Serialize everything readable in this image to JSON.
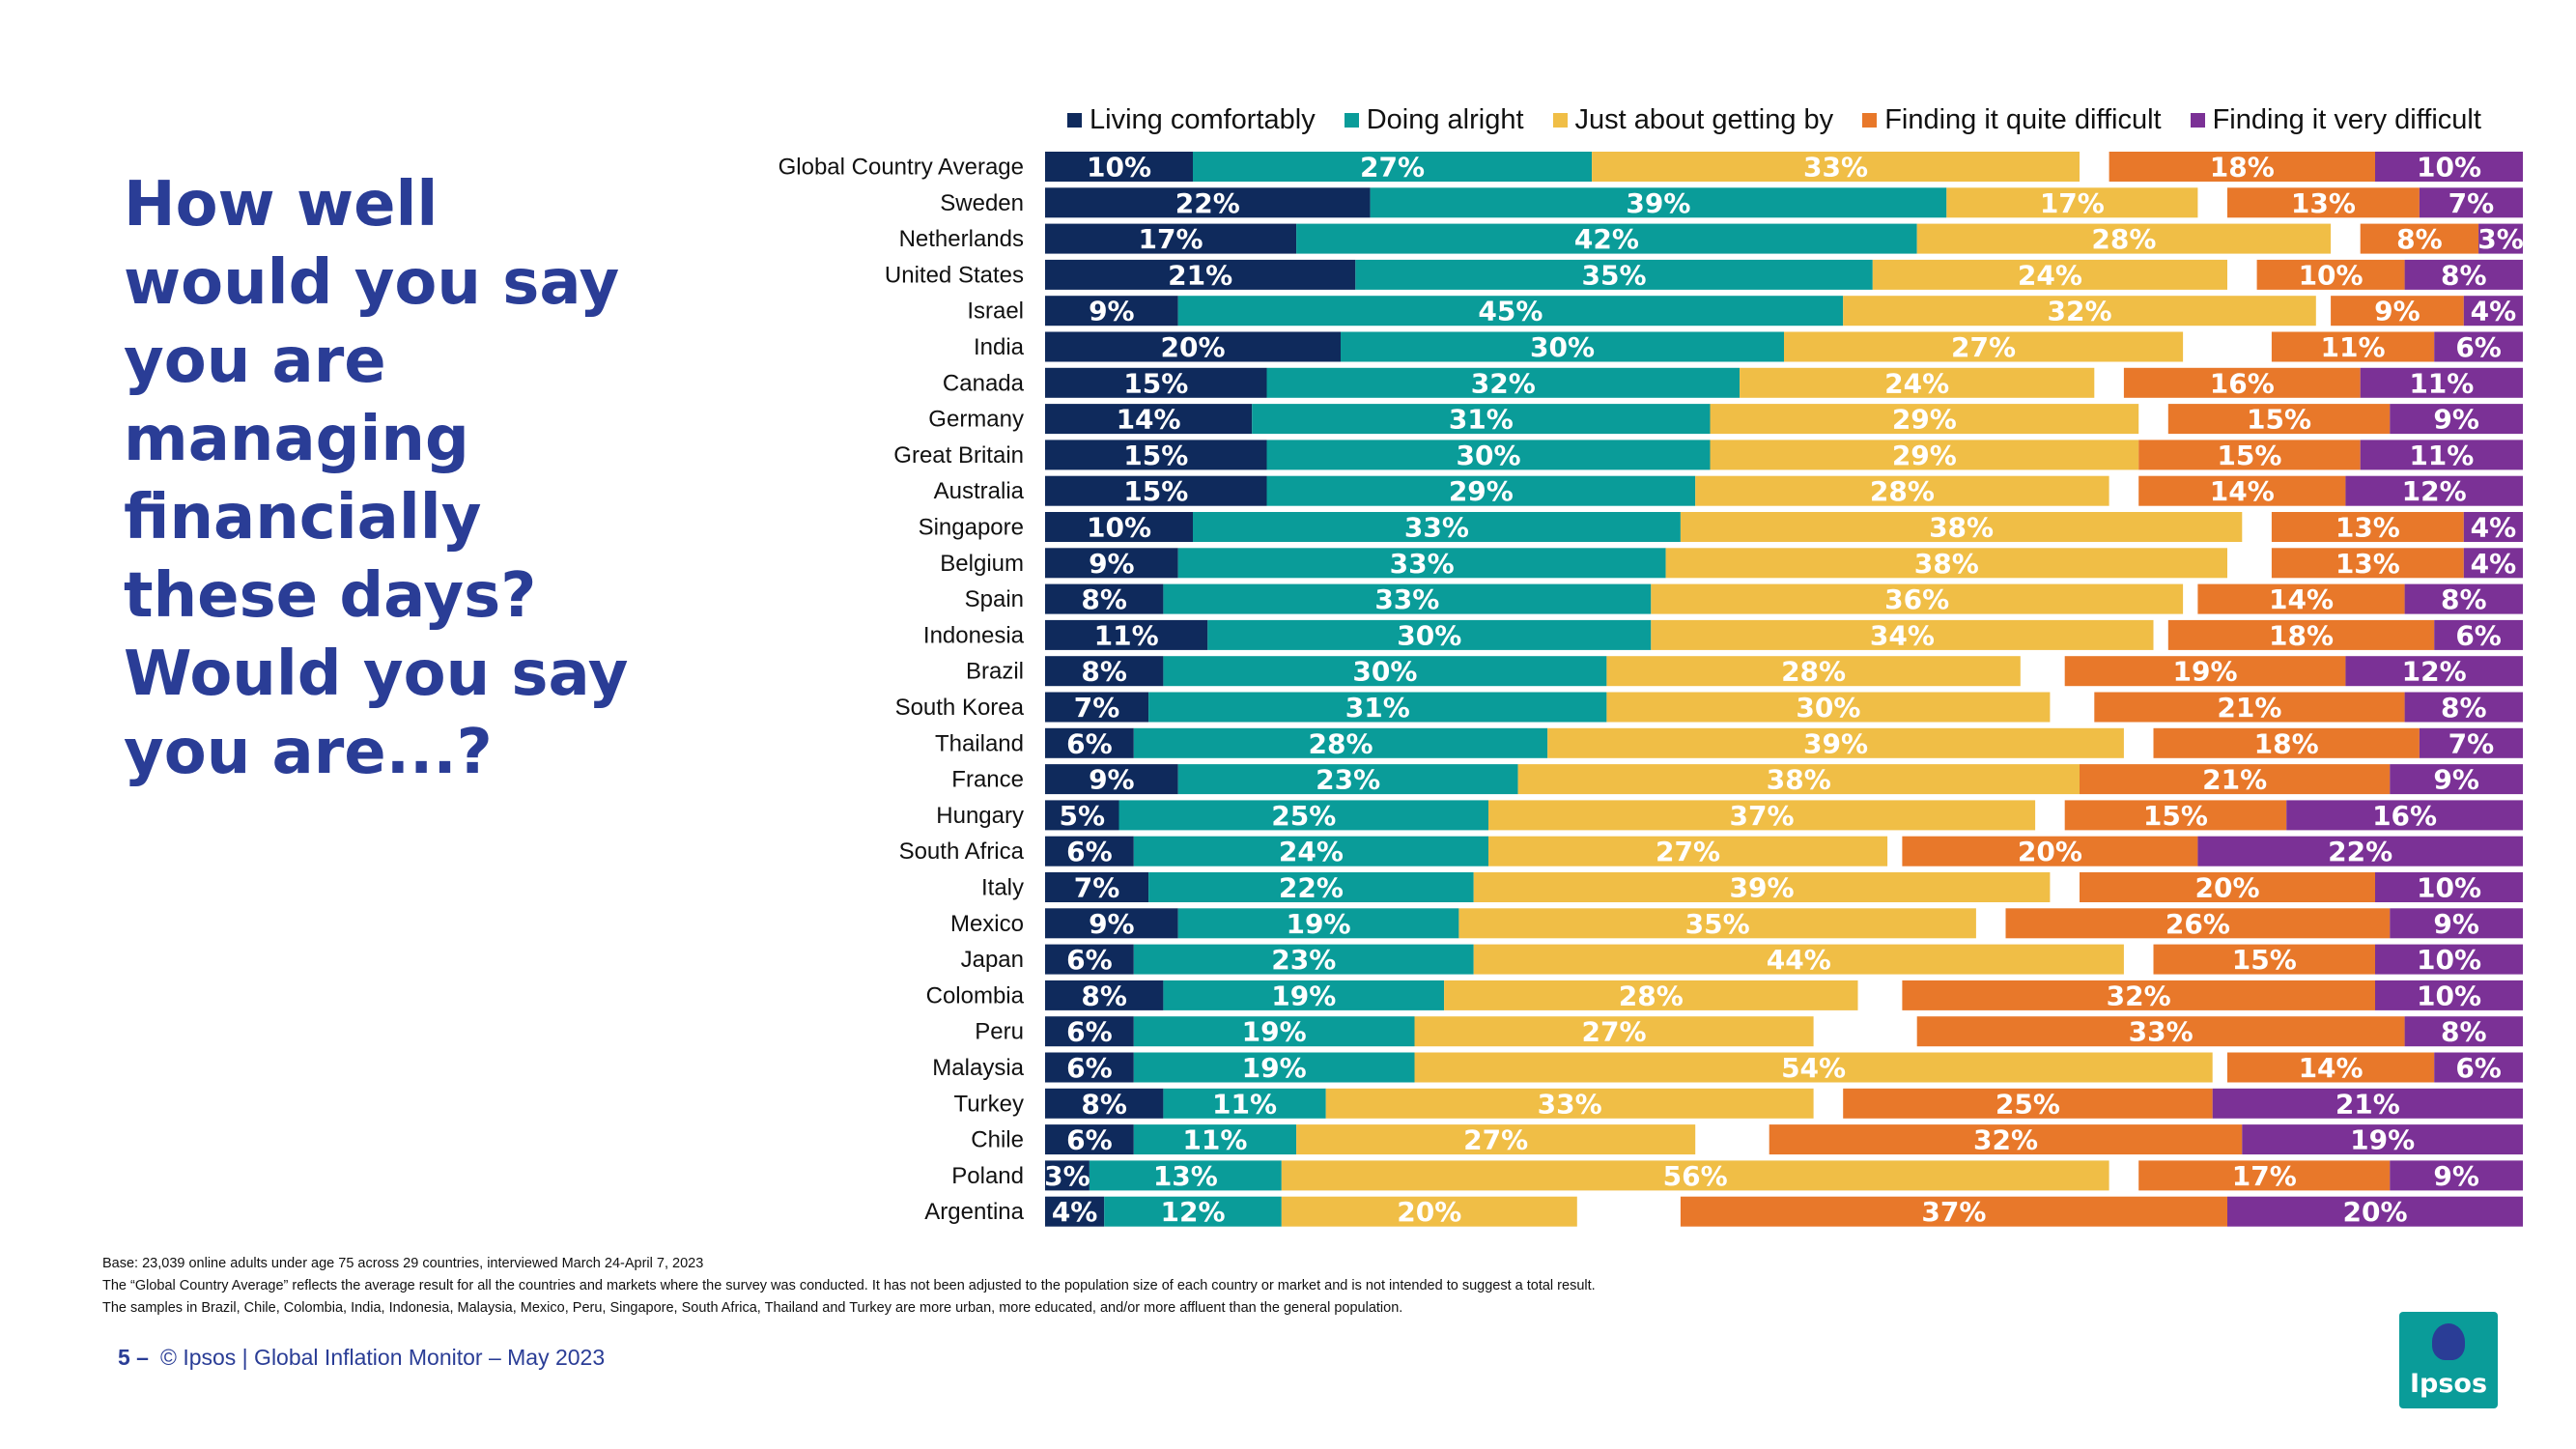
{
  "question": "How well would you say you are managing financially these days? Would you say you are...?",
  "footnotes": [
    "Base: 23,039 online adults under age 75 across 29 countries, interviewed March 24-April 7, 2023",
    "The “Global Country Average” reflects the average result for all the countries and markets where the survey was conducted. It has not been adjusted to the population size of each country or market and is not intended to suggest a total result.",
    "The samples in Brazil, Chile, Colombia, India, Indonesia, Malaysia, Mexico, Peru, Singapore, South Africa, Thailand and Turkey are more urban, more educated, and/or more affluent than the general population."
  ],
  "footer": {
    "page_number": "5 –",
    "text": "© Ipsos | Global Inflation Monitor – May 2023"
  },
  "logo": {
    "text": "Ipsos"
  },
  "chart_data": {
    "type": "bar",
    "orientation": "horizontal",
    "stacked": true,
    "value_suffix": "%",
    "legend_position": "top",
    "colors": [
      "#0f2a5c",
      "#0a9c99",
      "#f0be46",
      "#e8782a",
      "#7b3196"
    ],
    "categories": [
      "Global Country Average",
      "Sweden",
      "Netherlands",
      "United States",
      "Israel",
      "India",
      "Canada",
      "Germany",
      "Great Britain",
      "Australia",
      "Singapore",
      "Belgium",
      "Spain",
      "Indonesia",
      "Brazil",
      "South Korea",
      "Thailand",
      "France",
      "Hungary",
      "South Africa",
      "Italy",
      "Mexico",
      "Japan",
      "Colombia",
      "Peru",
      "Malaysia",
      "Turkey",
      "Chile",
      "Poland",
      "Argentina"
    ],
    "series": [
      {
        "name": "Living comfortably",
        "values": [
          10,
          22,
          17,
          21,
          9,
          20,
          15,
          14,
          15,
          15,
          10,
          9,
          8,
          11,
          8,
          7,
          6,
          9,
          5,
          6,
          7,
          9,
          6,
          8,
          6,
          6,
          8,
          6,
          3,
          4
        ]
      },
      {
        "name": "Doing alright",
        "values": [
          27,
          39,
          42,
          35,
          45,
          30,
          32,
          31,
          30,
          29,
          33,
          33,
          33,
          30,
          30,
          31,
          28,
          23,
          25,
          24,
          22,
          19,
          23,
          19,
          19,
          19,
          11,
          11,
          13,
          12
        ]
      },
      {
        "name": "Just about getting by",
        "values": [
          33,
          17,
          28,
          24,
          32,
          27,
          24,
          29,
          29,
          28,
          38,
          38,
          36,
          34,
          28,
          30,
          39,
          38,
          37,
          27,
          39,
          35,
          44,
          28,
          27,
          54,
          33,
          27,
          56,
          20
        ]
      },
      {
        "name": "Finding it quite difficult",
        "values": [
          18,
          13,
          8,
          10,
          9,
          11,
          16,
          15,
          15,
          14,
          13,
          13,
          14,
          18,
          19,
          21,
          18,
          21,
          15,
          20,
          20,
          26,
          15,
          32,
          33,
          14,
          25,
          32,
          17,
          37
        ]
      },
      {
        "name": "Finding it very difficult",
        "values": [
          10,
          7,
          3,
          8,
          4,
          6,
          11,
          9,
          11,
          12,
          4,
          4,
          8,
          6,
          12,
          8,
          7,
          9,
          16,
          22,
          10,
          9,
          10,
          10,
          8,
          6,
          21,
          19,
          9,
          20
        ]
      }
    ]
  }
}
